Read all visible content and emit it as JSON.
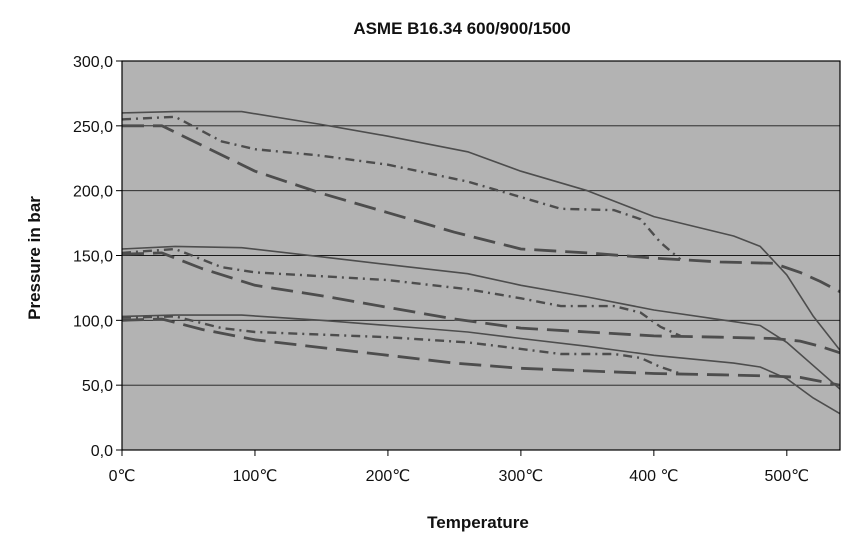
{
  "chart_data": {
    "type": "line",
    "title": "ASME B16.34 600/900/1500",
    "xlabel": "Temperature",
    "ylabel": "Pressure in bar",
    "xlim": [
      0,
      540
    ],
    "ylim": [
      0,
      300
    ],
    "x_ticks": [
      0,
      100,
      200,
      300,
      400,
      500
    ],
    "x_tick_labels": [
      "0℃",
      "100℃",
      "200℃",
      "300℃",
      "400 ℃",
      "500℃"
    ],
    "y_ticks": [
      0,
      50,
      100,
      150,
      200,
      250,
      300
    ],
    "y_tick_labels": [
      "0,0",
      "50,0",
      "100,0",
      "150,0",
      "200,0",
      "250,0",
      "300,0"
    ],
    "grid": "horizontal",
    "plot_background": "#b3b3b3",
    "line_color": "#4d4d4d",
    "series": [
      {
        "style": "solid",
        "width": 1.6,
        "points": [
          [
            0,
            260
          ],
          [
            40,
            261
          ],
          [
            90,
            261
          ],
          [
            150,
            251
          ],
          [
            200,
            242
          ],
          [
            260,
            230
          ],
          [
            300,
            215
          ],
          [
            350,
            200
          ],
          [
            400,
            180
          ],
          [
            460,
            165
          ],
          [
            480,
            157
          ],
          [
            500,
            135
          ],
          [
            520,
            103
          ],
          [
            540,
            77
          ]
        ]
      },
      {
        "style": "dashdot",
        "width": 2.4,
        "points": [
          [
            0,
            255
          ],
          [
            40,
            257
          ],
          [
            75,
            238
          ],
          [
            100,
            232
          ],
          [
            150,
            227
          ],
          [
            200,
            220
          ],
          [
            260,
            207
          ],
          [
            300,
            195
          ],
          [
            330,
            186
          ],
          [
            370,
            185
          ],
          [
            390,
            178
          ],
          [
            405,
            160
          ],
          [
            420,
            147
          ]
        ]
      },
      {
        "style": "longdash",
        "width": 2.8,
        "points": [
          [
            0,
            250
          ],
          [
            30,
            250
          ],
          [
            60,
            235
          ],
          [
            100,
            215
          ],
          [
            150,
            198
          ],
          [
            200,
            183
          ],
          [
            250,
            168
          ],
          [
            300,
            155
          ],
          [
            350,
            152
          ],
          [
            400,
            148
          ],
          [
            450,
            145
          ],
          [
            490,
            144
          ],
          [
            510,
            137
          ],
          [
            525,
            130
          ],
          [
            540,
            122
          ]
        ]
      },
      {
        "style": "solid",
        "width": 1.6,
        "points": [
          [
            0,
            155
          ],
          [
            40,
            157
          ],
          [
            90,
            156
          ],
          [
            150,
            149
          ],
          [
            200,
            143
          ],
          [
            260,
            136
          ],
          [
            300,
            127
          ],
          [
            350,
            118
          ],
          [
            400,
            108
          ],
          [
            460,
            99
          ],
          [
            480,
            96
          ],
          [
            500,
            83
          ],
          [
            520,
            65
          ],
          [
            540,
            47
          ]
        ]
      },
      {
        "style": "dashdot",
        "width": 2.4,
        "points": [
          [
            0,
            152
          ],
          [
            40,
            155
          ],
          [
            75,
            141
          ],
          [
            100,
            137
          ],
          [
            150,
            134
          ],
          [
            200,
            131
          ],
          [
            260,
            124
          ],
          [
            300,
            117
          ],
          [
            330,
            111
          ],
          [
            370,
            111
          ],
          [
            390,
            106
          ],
          [
            405,
            95
          ],
          [
            420,
            88
          ]
        ]
      },
      {
        "style": "longdash",
        "width": 2.8,
        "points": [
          [
            0,
            151
          ],
          [
            30,
            152
          ],
          [
            60,
            140
          ],
          [
            100,
            127
          ],
          [
            150,
            119
          ],
          [
            200,
            110
          ],
          [
            250,
            101
          ],
          [
            300,
            94
          ],
          [
            350,
            91
          ],
          [
            400,
            88
          ],
          [
            450,
            87
          ],
          [
            490,
            86
          ],
          [
            510,
            84
          ],
          [
            525,
            80
          ],
          [
            540,
            75
          ]
        ]
      },
      {
        "style": "solid",
        "width": 1.6,
        "points": [
          [
            0,
            103
          ],
          [
            40,
            104
          ],
          [
            90,
            104
          ],
          [
            150,
            100
          ],
          [
            200,
            96
          ],
          [
            260,
            91
          ],
          [
            300,
            86
          ],
          [
            350,
            80
          ],
          [
            400,
            73
          ],
          [
            460,
            67
          ],
          [
            480,
            64
          ],
          [
            500,
            55
          ],
          [
            520,
            40
          ],
          [
            540,
            28
          ]
        ]
      },
      {
        "style": "dashdot",
        "width": 2.4,
        "points": [
          [
            0,
            102
          ],
          [
            40,
            103
          ],
          [
            75,
            94
          ],
          [
            100,
            91
          ],
          [
            150,
            89
          ],
          [
            200,
            87
          ],
          [
            260,
            83
          ],
          [
            300,
            78
          ],
          [
            330,
            74
          ],
          [
            370,
            74
          ],
          [
            390,
            71
          ],
          [
            405,
            64
          ],
          [
            420,
            59
          ]
        ]
      },
      {
        "style": "longdash",
        "width": 2.8,
        "points": [
          [
            0,
            100
          ],
          [
            30,
            101
          ],
          [
            60,
            93
          ],
          [
            100,
            85
          ],
          [
            150,
            79
          ],
          [
            200,
            73
          ],
          [
            250,
            67
          ],
          [
            300,
            63
          ],
          [
            350,
            61
          ],
          [
            400,
            59
          ],
          [
            450,
            58
          ],
          [
            490,
            57
          ],
          [
            510,
            56
          ],
          [
            525,
            53
          ],
          [
            540,
            50
          ]
        ]
      }
    ]
  }
}
